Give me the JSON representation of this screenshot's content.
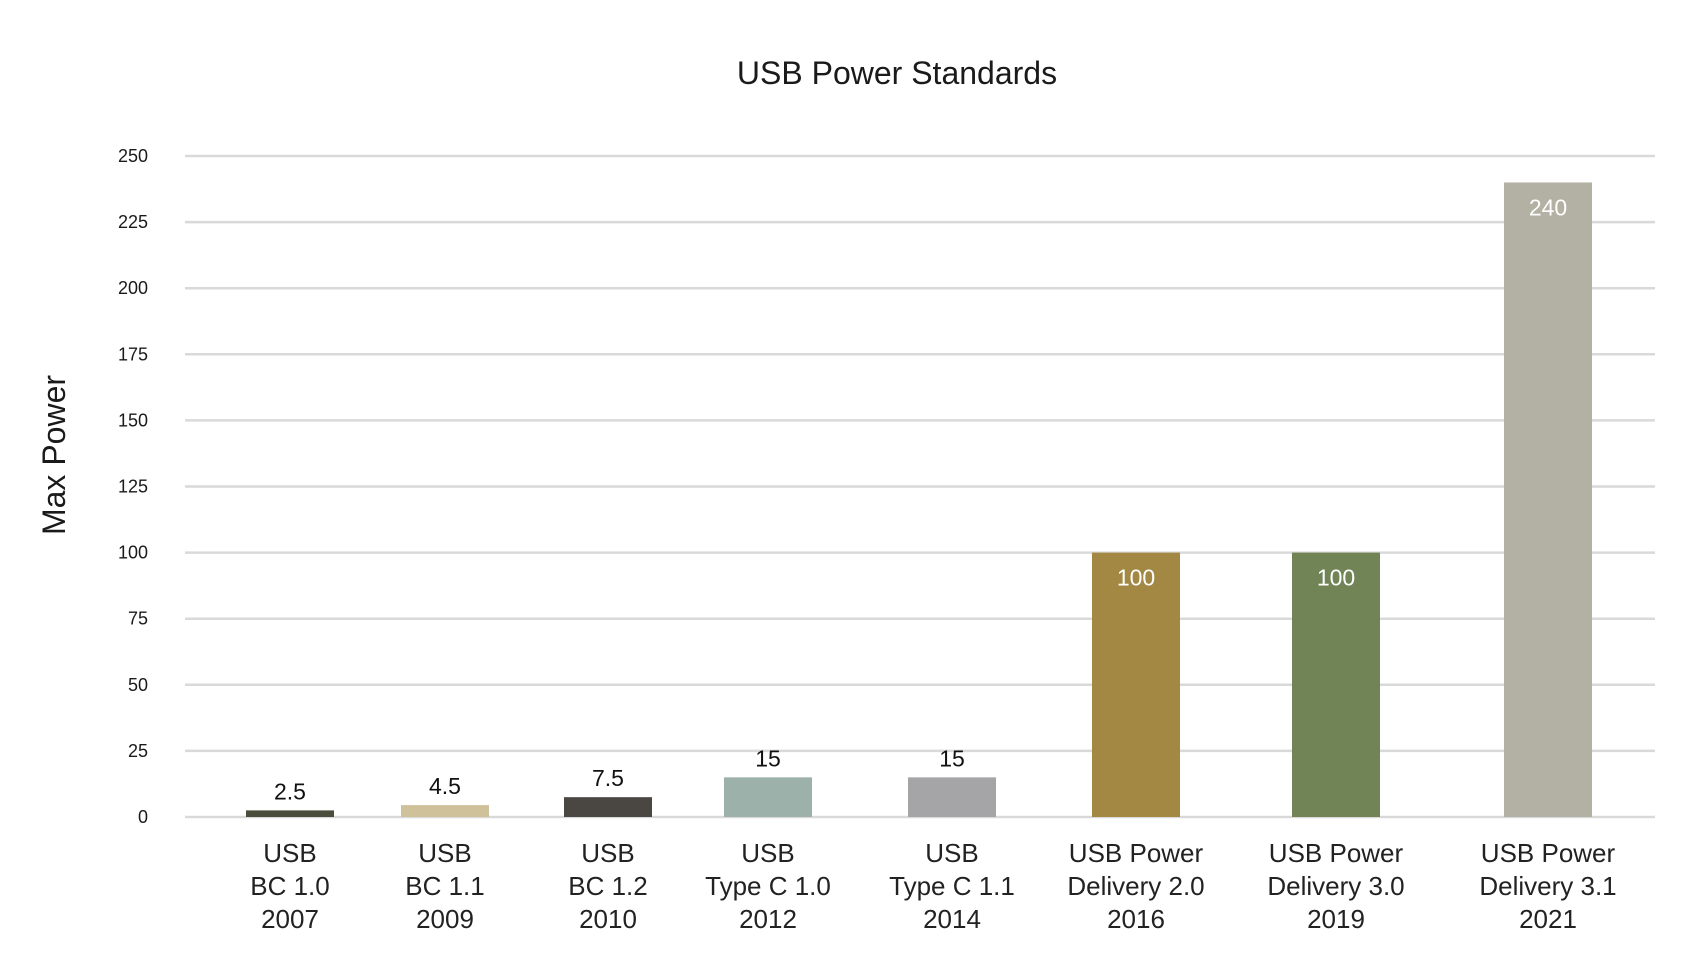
{
  "chart_data": {
    "type": "bar",
    "title": "USB Power Standards",
    "xlabel": "",
    "ylabel": "Max Power",
    "ylim": [
      0,
      250
    ],
    "yticks": [
      "0",
      "25",
      "50",
      "75",
      "100",
      "125",
      "150",
      "175",
      "200",
      "225",
      "250"
    ],
    "grid": true,
    "categories": [
      [
        "USB",
        "BC 1.0",
        "2007"
      ],
      [
        "USB",
        "BC 1.1",
        "2009"
      ],
      [
        "USB",
        "BC 1.2",
        "2010"
      ],
      [
        "USB",
        "Type C 1.0",
        "2012"
      ],
      [
        "USB",
        "Type C 1.1",
        "2014"
      ],
      [
        "USB Power",
        "Delivery 2.0",
        "2016"
      ],
      [
        "USB Power",
        "Delivery 3.0",
        "2019"
      ],
      [
        "USB Power",
        "Delivery 3.1",
        "2021"
      ]
    ],
    "values": [
      2.5,
      4.5,
      7.5,
      15,
      15,
      100,
      100,
      240
    ],
    "data_labels": [
      "2.5",
      "4.5",
      "7.5",
      "15",
      "15",
      "100",
      "100",
      "240"
    ],
    "colors": [
      "#4a4d3c",
      "#cfc29a",
      "#4a4743",
      "#9bb1a9",
      "#a5a5a8",
      "#a38844",
      "#718456",
      "#b2b1a3"
    ],
    "label_colors_inside": "#ffffff",
    "label_colors_outside": "#111111"
  }
}
